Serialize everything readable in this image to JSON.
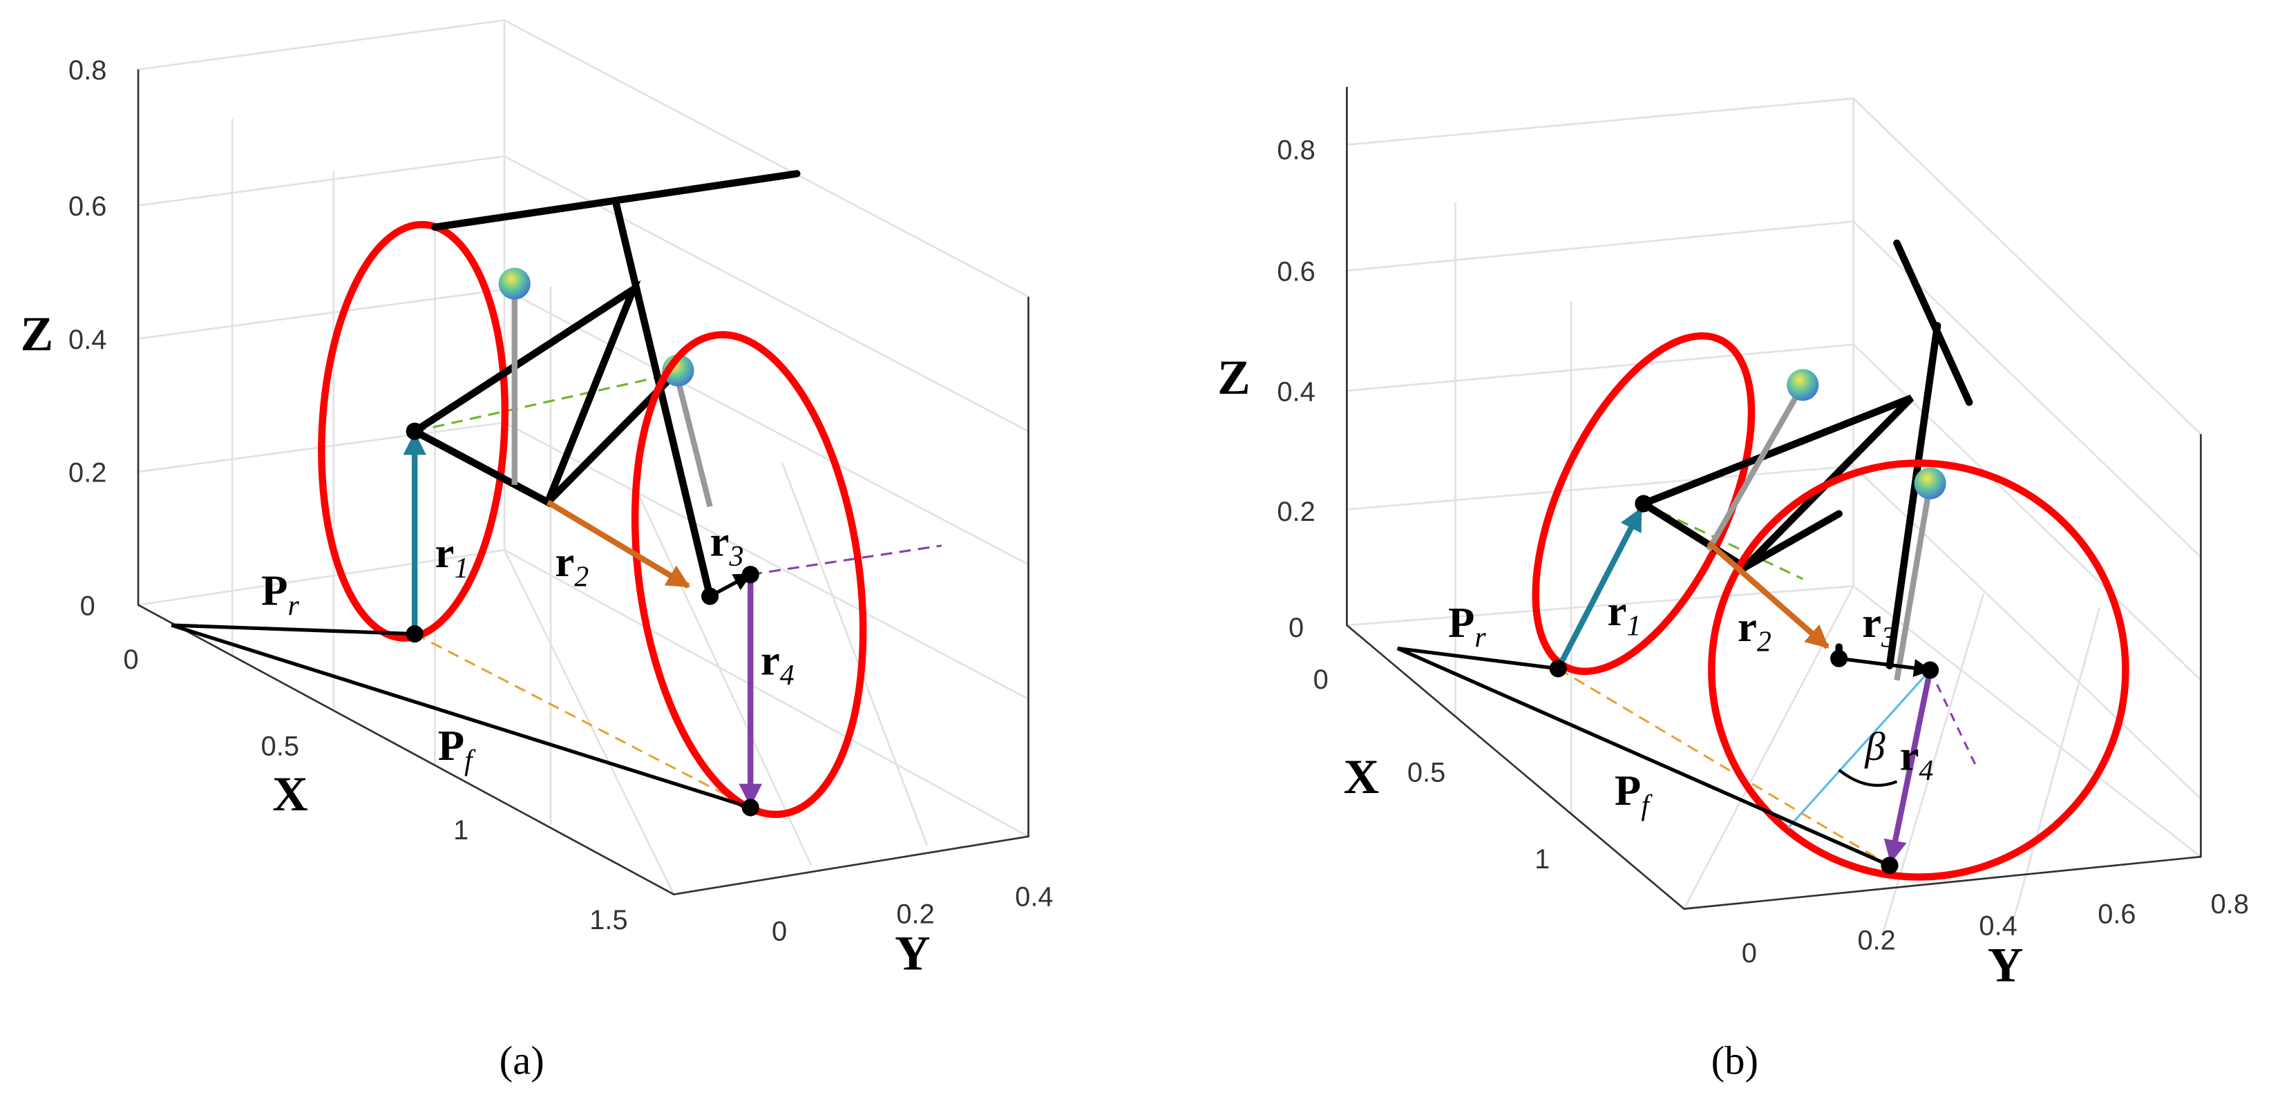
{
  "panels": [
    {
      "caption": "(a)",
      "axes": {
        "x": {
          "label": "X",
          "ticks": [
            "0",
            "0.5",
            "1",
            "1.5"
          ]
        },
        "y": {
          "label": "Y",
          "ticks": [
            "0",
            "0.2",
            "0.4"
          ]
        },
        "z": {
          "label": "Z",
          "ticks": [
            "0",
            "0.2",
            "0.4",
            "0.6",
            "0.8"
          ]
        }
      },
      "vectors": [
        {
          "main": "P",
          "sub": "r"
        },
        {
          "main": "P",
          "sub": "f"
        },
        {
          "main": "r",
          "sub": "1"
        },
        {
          "main": "r",
          "sub": "2"
        },
        {
          "main": "r",
          "sub": "3"
        },
        {
          "main": "r",
          "sub": "4"
        }
      ]
    },
    {
      "caption": "(b)",
      "axes": {
        "x": {
          "label": "X",
          "ticks": [
            "0",
            "0.5",
            "1"
          ]
        },
        "y": {
          "label": "Y",
          "ticks": [
            "0",
            "0.2",
            "0.4",
            "0.6",
            "0.8"
          ]
        },
        "z": {
          "label": "Z",
          "ticks": [
            "0",
            "0.2",
            "0.4",
            "0.6",
            "0.8"
          ]
        }
      },
      "vectors": [
        {
          "main": "P",
          "sub": "r"
        },
        {
          "main": "P",
          "sub": "f"
        },
        {
          "main": "r",
          "sub": "1"
        },
        {
          "main": "r",
          "sub": "2"
        },
        {
          "main": "r",
          "sub": "3"
        },
        {
          "main": "r",
          "sub": "4"
        }
      ],
      "angle": "β"
    }
  ]
}
